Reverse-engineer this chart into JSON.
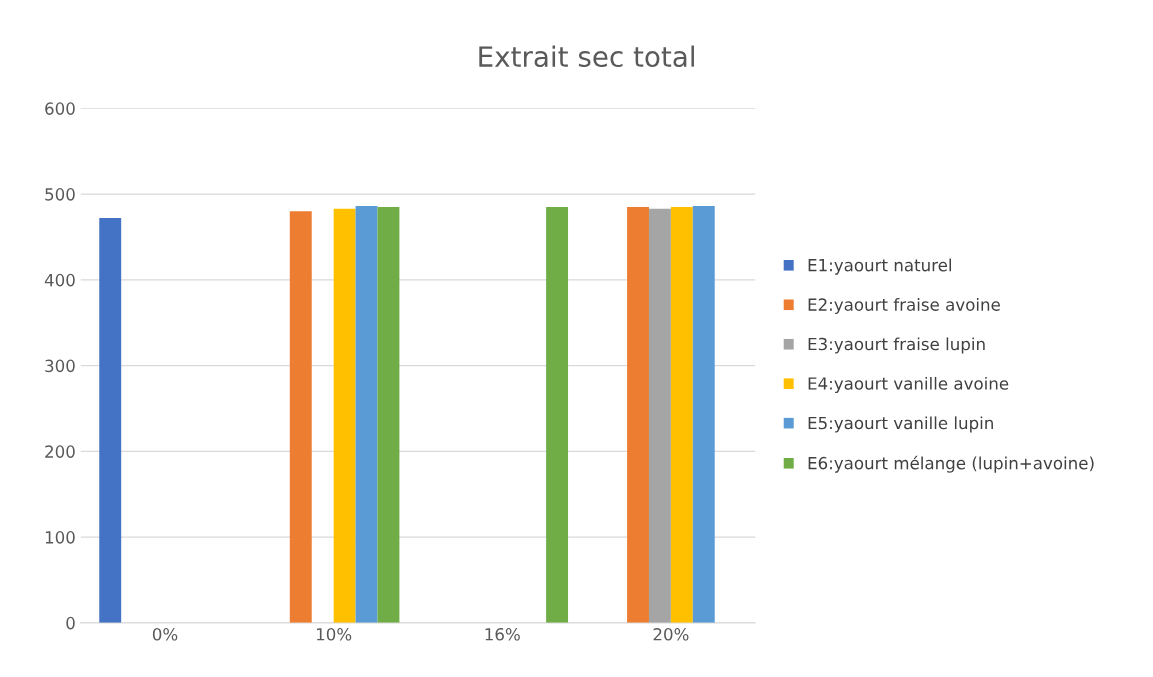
{
  "chart_data": {
    "type": "bar",
    "title": "Extrait sec total",
    "categories": [
      "0%",
      "10%",
      "16%",
      "20%"
    ],
    "series": [
      {
        "name": "E1:yaourt naturel",
        "color": "#4472c4",
        "values": [
          472,
          null,
          null,
          null
        ]
      },
      {
        "name": "E2:yaourt fraise avoine",
        "color": "#ed7d31",
        "values": [
          null,
          480,
          null,
          485
        ]
      },
      {
        "name": "E3:yaourt fraise lupin",
        "color": "#a5a5a5",
        "values": [
          null,
          null,
          null,
          483
        ]
      },
      {
        "name": "E4:yaourt vanille avoine",
        "color": "#ffc000",
        "values": [
          null,
          483,
          null,
          485
        ]
      },
      {
        "name": "E5:yaourt vanille lupin",
        "color": "#5b9bd5",
        "values": [
          null,
          486,
          null,
          486
        ]
      },
      {
        "name": "E6:yaourt mélange (lupin+avoine)",
        "color": "#70ad47",
        "values": [
          null,
          485,
          485,
          null
        ]
      }
    ],
    "ylim": [
      0,
      600
    ],
    "yticks": [
      0,
      100,
      200,
      300,
      400,
      500,
      600
    ],
    "grid": "y",
    "legend": "right"
  }
}
